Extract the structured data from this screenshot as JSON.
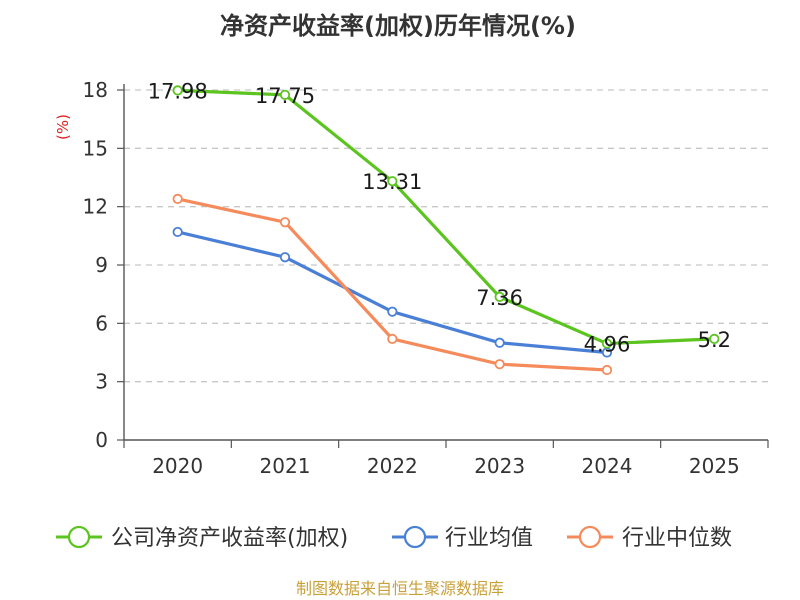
{
  "chart_data": {
    "type": "line",
    "title": "净资产收益率(加权)历年情况(%)",
    "ylabel": "(%)",
    "xlabel": "",
    "categories": [
      "2020",
      "2021",
      "2022",
      "2023",
      "2024",
      "2025"
    ],
    "ylim": [
      0,
      18
    ],
    "yticks": [
      0,
      3,
      6,
      9,
      12,
      15,
      18
    ],
    "grid": true,
    "legend_position": "bottom",
    "series": [
      {
        "name": "公司净资产收益率(加权)",
        "color": "#5bc41f",
        "values": [
          17.98,
          17.75,
          13.31,
          7.36,
          4.96,
          5.2
        ],
        "labels": [
          "17.98",
          "17.75",
          "13.31",
          "7.36",
          "4.96",
          "5.2"
        ]
      },
      {
        "name": "行业均值",
        "color": "#4a7fd6",
        "values": [
          10.7,
          9.4,
          6.6,
          5.0,
          4.5,
          null
        ]
      },
      {
        "name": "行业中位数",
        "color": "#f58a5b",
        "values": [
          12.4,
          11.2,
          5.2,
          3.9,
          3.6,
          null
        ]
      }
    ]
  },
  "source": "制图数据来自恒生聚源数据库"
}
